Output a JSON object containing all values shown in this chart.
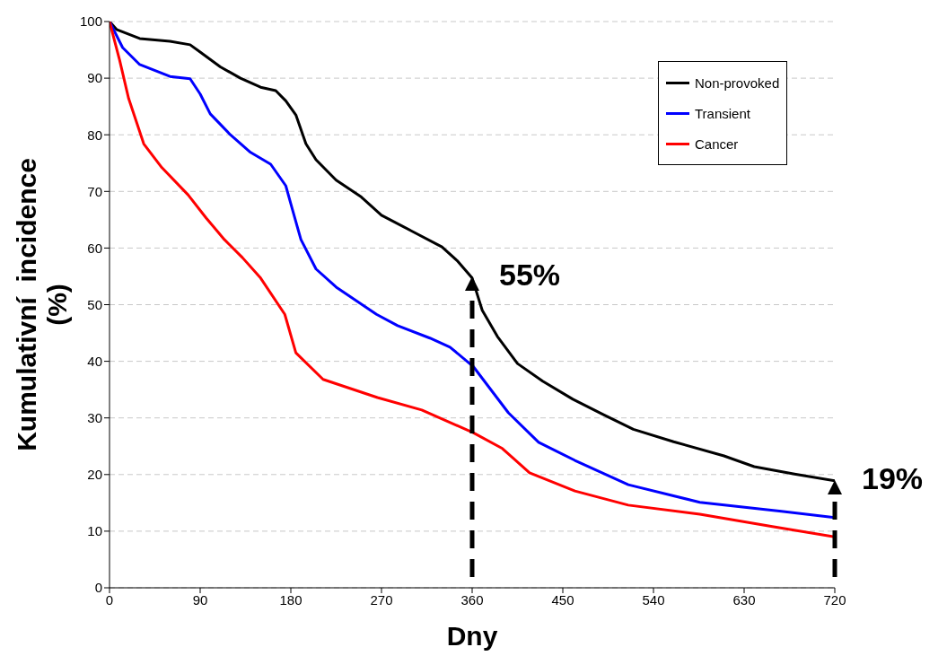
{
  "chart_data": {
    "type": "line",
    "xlabel": "Dny",
    "ylabel": "Kumulativní  incidence (%)",
    "xlim": [
      0,
      720
    ],
    "xticks": [
      0,
      90,
      180,
      270,
      360,
      450,
      540,
      630,
      720
    ],
    "ylim": [
      0,
      100
    ],
    "yticks": [
      0,
      10,
      20,
      30,
      40,
      50,
      60,
      70,
      80,
      90,
      100
    ],
    "grid": "y",
    "legend": "top right",
    "line_style": "solid",
    "marker": "none",
    "series": [
      {
        "name": "Non-provoked",
        "color": "#000000",
        "x": [
          0,
          7,
          30,
          60,
          80,
          90,
          110,
          130,
          150,
          165,
          175,
          185,
          195,
          205,
          225,
          250,
          270,
          300,
          330,
          345,
          360,
          370,
          385,
          405,
          430,
          460,
          490,
          520,
          560,
          610,
          640,
          680,
          720
        ],
        "values": [
          100,
          98.6,
          97,
          96.5,
          95.9,
          94.6,
          92,
          90,
          88.4,
          87.8,
          86,
          83.5,
          78.4,
          75.6,
          72,
          69,
          65.8,
          63,
          60.2,
          57.8,
          54.7,
          49,
          44.4,
          39.6,
          36.5,
          33.3,
          30.6,
          28,
          25.8,
          23.3,
          21.4,
          20.1,
          18.9
        ]
      },
      {
        "name": "Transient",
        "color": "#0000ff",
        "x": [
          0,
          13,
          30,
          60,
          80,
          90,
          100,
          120,
          140,
          160,
          175,
          180,
          190,
          205,
          225,
          265,
          286,
          318,
          338,
          361,
          396,
          426,
          462,
          515,
          586,
          667,
          720
        ],
        "values": [
          100,
          95.4,
          92.4,
          90.3,
          89.9,
          87.2,
          83.7,
          80,
          76.9,
          74.8,
          71,
          67.8,
          61.5,
          56.3,
          53.1,
          48.3,
          46.3,
          44.1,
          42.5,
          39.1,
          30.9,
          25.7,
          22.5,
          18.2,
          15.1,
          13.5,
          12.4
        ]
      },
      {
        "name": "Cancer",
        "color": "#ff0000",
        "x": [
          0,
          10,
          19,
          34,
          52,
          78,
          96,
          114,
          132,
          150,
          174,
          185,
          212,
          266,
          310,
          361,
          390,
          417,
          462,
          515,
          586,
          658,
          720
        ],
        "values": [
          100,
          93.2,
          86.4,
          78.4,
          74.2,
          69.4,
          65.3,
          61.5,
          58.3,
          54.7,
          48.3,
          41.5,
          36.8,
          33.6,
          31.4,
          27.4,
          24.6,
          20.3,
          17.1,
          14.6,
          13,
          10.8,
          9
        ]
      }
    ],
    "annotations": [
      {
        "text": "55%",
        "x": 360,
        "y": 55
      },
      {
        "text": "19%",
        "x": 720,
        "y": 19
      }
    ]
  }
}
